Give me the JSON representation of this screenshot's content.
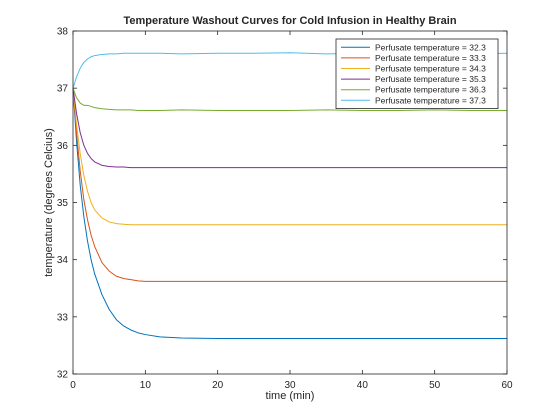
{
  "chart_data": {
    "type": "line",
    "title": "Temperature Washout Curves for Cold Infusion in Healthy Brain",
    "xlabel": "time (min)",
    "ylabel": "temperature (degrees Celcius)",
    "xlim": [
      0,
      60
    ],
    "ylim": [
      32,
      38
    ],
    "xticks": [
      0,
      10,
      20,
      30,
      40,
      50,
      60
    ],
    "yticks": [
      32,
      33,
      34,
      35,
      36,
      37,
      38
    ],
    "grid": false,
    "legend_position": "top-right",
    "x": [
      0,
      0.5,
      1,
      1.5,
      2,
      2.5,
      3,
      4,
      5,
      6,
      7,
      8,
      9,
      10,
      12,
      15,
      20,
      25,
      30,
      35,
      40,
      45,
      50,
      55,
      60
    ],
    "series": [
      {
        "name": "Perfusate temperature = 32.3",
        "color": "#0072BD",
        "values": [
          37.0,
          36.05,
          35.3,
          34.75,
          34.33,
          34.0,
          33.75,
          33.39,
          33.13,
          32.95,
          32.84,
          32.77,
          32.72,
          32.69,
          32.65,
          32.63,
          32.62,
          32.62,
          32.62,
          32.62,
          32.62,
          32.62,
          32.62,
          32.62,
          32.62
        ]
      },
      {
        "name": "Perfusate temperature = 33.3",
        "color": "#D95319",
        "values": [
          37.0,
          36.2,
          35.55,
          35.05,
          34.7,
          34.43,
          34.23,
          33.95,
          33.8,
          33.71,
          33.67,
          33.65,
          33.63,
          33.62,
          33.62,
          33.62,
          33.62,
          33.62,
          33.62,
          33.62,
          33.62,
          33.62,
          33.62,
          33.62,
          33.62
        ]
      },
      {
        "name": "Perfusate temperature = 34.3",
        "color": "#EDB120",
        "values": [
          37.0,
          36.35,
          35.85,
          35.47,
          35.2,
          35.0,
          34.87,
          34.73,
          34.66,
          34.63,
          34.62,
          34.61,
          34.61,
          34.61,
          34.61,
          34.61,
          34.61,
          34.61,
          34.61,
          34.61,
          34.61,
          34.61,
          34.61,
          34.61,
          34.61
        ]
      },
      {
        "name": "Perfusate temperature = 35.3",
        "color": "#7E2F8E",
        "values": [
          37.0,
          36.55,
          36.22,
          36.0,
          35.86,
          35.77,
          35.71,
          35.65,
          35.63,
          35.62,
          35.62,
          35.61,
          35.61,
          35.61,
          35.61,
          35.61,
          35.61,
          35.61,
          35.61,
          35.61,
          35.61,
          35.61,
          35.61,
          35.61,
          35.61
        ]
      },
      {
        "name": "Perfusate temperature = 36.3",
        "color": "#77AC30",
        "values": [
          37.0,
          36.83,
          36.74,
          36.7,
          36.7,
          36.68,
          36.66,
          36.64,
          36.63,
          36.62,
          36.62,
          36.62,
          36.61,
          36.61,
          36.61,
          36.62,
          36.61,
          36.61,
          36.61,
          36.62,
          36.61,
          36.61,
          36.62,
          36.61,
          36.61
        ]
      },
      {
        "name": "Perfusate temperature = 37.3",
        "color": "#4DBEEE",
        "values": [
          37.0,
          37.2,
          37.35,
          37.45,
          37.51,
          37.55,
          37.57,
          37.59,
          37.6,
          37.6,
          37.61,
          37.61,
          37.61,
          37.61,
          37.61,
          37.6,
          37.61,
          37.61,
          37.62,
          37.6,
          37.61,
          37.61,
          37.61,
          37.6,
          37.61
        ]
      }
    ]
  }
}
